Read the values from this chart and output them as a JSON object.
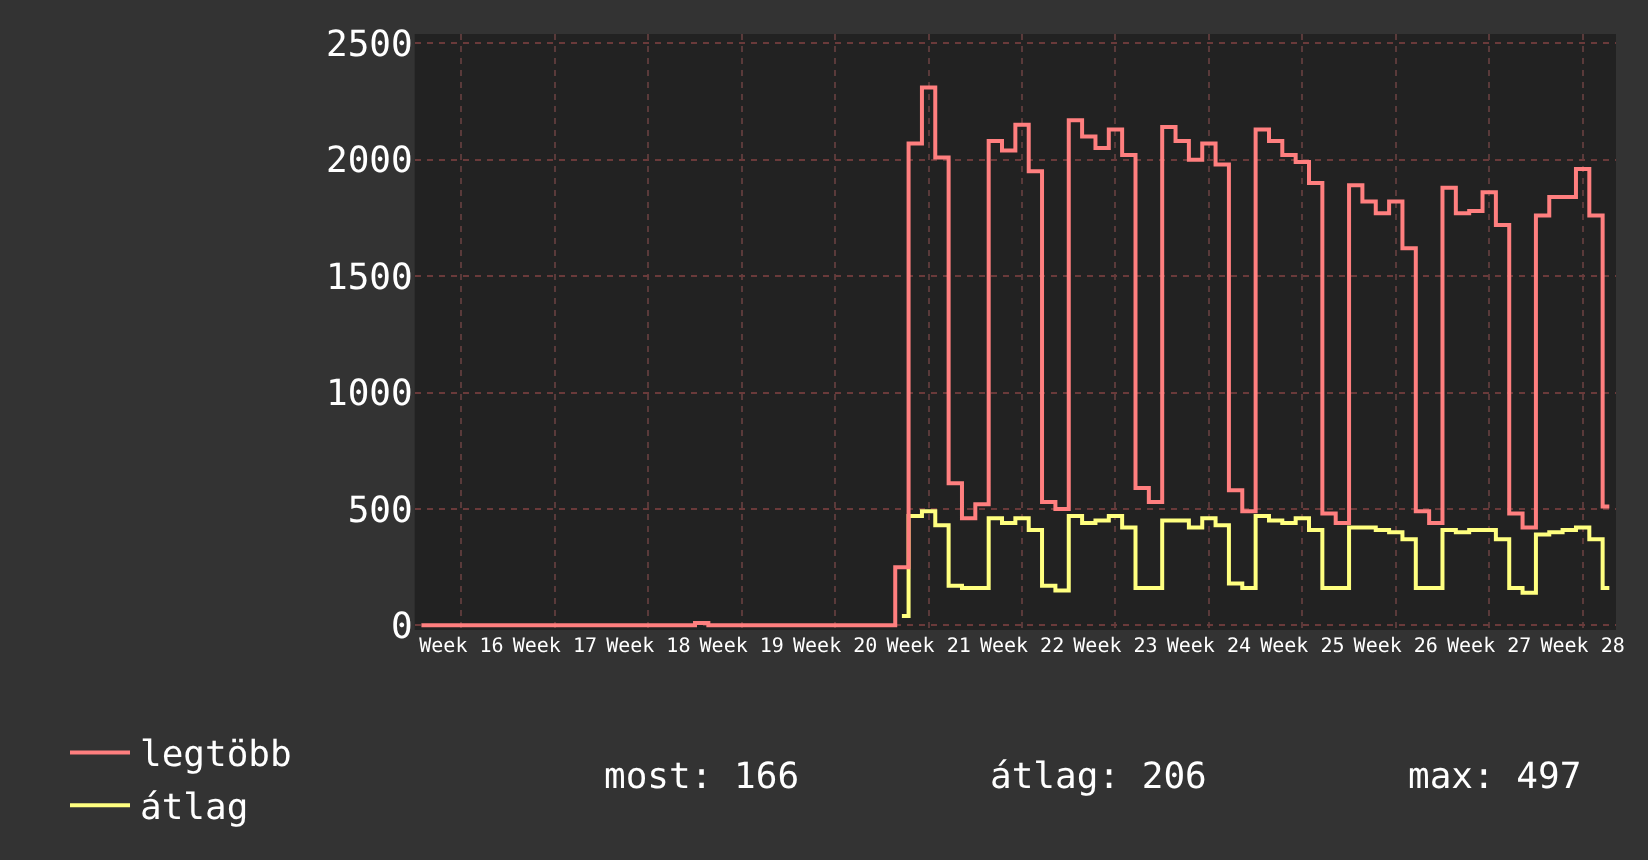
{
  "chart_data": {
    "type": "step",
    "categories": [
      null,
      null,
      null,
      "Week 16",
      null,
      null,
      null,
      null,
      null,
      null,
      "Week 17",
      null,
      null,
      null,
      null,
      null,
      null,
      "Week 18",
      null,
      null,
      null,
      null,
      null,
      null,
      "Week 19",
      null,
      null,
      null,
      null,
      null,
      null,
      "Week 20",
      null,
      null,
      null,
      null,
      null,
      null,
      "Week 21",
      null,
      null,
      null,
      null,
      null,
      null,
      "Week 22",
      null,
      null,
      null,
      null,
      null,
      null,
      "Week 23",
      null,
      null,
      null,
      null,
      null,
      null,
      "Week 24",
      null,
      null,
      null,
      null,
      null,
      null,
      "Week 25",
      null,
      null,
      null,
      null,
      null,
      null,
      "Week 26",
      null,
      null,
      null,
      null,
      null,
      null,
      "Week 27",
      null,
      null,
      null,
      null,
      null,
      null,
      "Week 28",
      null,
      null
    ],
    "ylim": [
      -20,
      2540
    ],
    "yticks": [
      0,
      500,
      1000,
      1500,
      2000,
      2500
    ],
    "grid": true,
    "legend": "bottom left",
    "series": [
      {
        "name": "legtöbb",
        "color": "#ff7f7f",
        "values": [
          0,
          0,
          0,
          0,
          0,
          0,
          0,
          0,
          0,
          0,
          0,
          0,
          0,
          0,
          0,
          0,
          0,
          0,
          0,
          0,
          0,
          10,
          0,
          0,
          0,
          0,
          0,
          0,
          0,
          0,
          0,
          0,
          0,
          0,
          0,
          0,
          250,
          2070,
          2310,
          2010,
          610,
          460,
          520,
          2080,
          2040,
          2150,
          1950,
          530,
          500,
          2170,
          2100,
          2050,
          2130,
          2020,
          590,
          530,
          2140,
          2080,
          2000,
          2070,
          1980,
          580,
          490,
          2130,
          2080,
          2020,
          1990,
          1900,
          480,
          440,
          1890,
          1820,
          1770,
          1820,
          1620,
          490,
          440,
          1880,
          1770,
          1780,
          1860,
          1720,
          480,
          420,
          1760,
          1840,
          1840,
          1960,
          1760,
          510
        ]
      },
      {
        "name": "átlag",
        "color": "#ffff80",
        "values": [
          null,
          null,
          null,
          null,
          null,
          null,
          null,
          null,
          null,
          null,
          null,
          null,
          null,
          null,
          null,
          null,
          null,
          null,
          null,
          null,
          null,
          null,
          null,
          null,
          null,
          null,
          null,
          null,
          null,
          null,
          null,
          null,
          null,
          null,
          null,
          null,
          40,
          470,
          490,
          430,
          170,
          160,
          160,
          460,
          440,
          460,
          410,
          170,
          150,
          470,
          440,
          450,
          470,
          420,
          160,
          160,
          450,
          450,
          420,
          460,
          430,
          180,
          160,
          470,
          450,
          440,
          460,
          410,
          160,
          160,
          420,
          420,
          410,
          400,
          370,
          160,
          160,
          410,
          400,
          410,
          410,
          370,
          160,
          140,
          390,
          400,
          410,
          420,
          370,
          160
        ]
      }
    ],
    "annotations": [
      "most: 166",
      "átlag: 206",
      "max: 497"
    ]
  }
}
